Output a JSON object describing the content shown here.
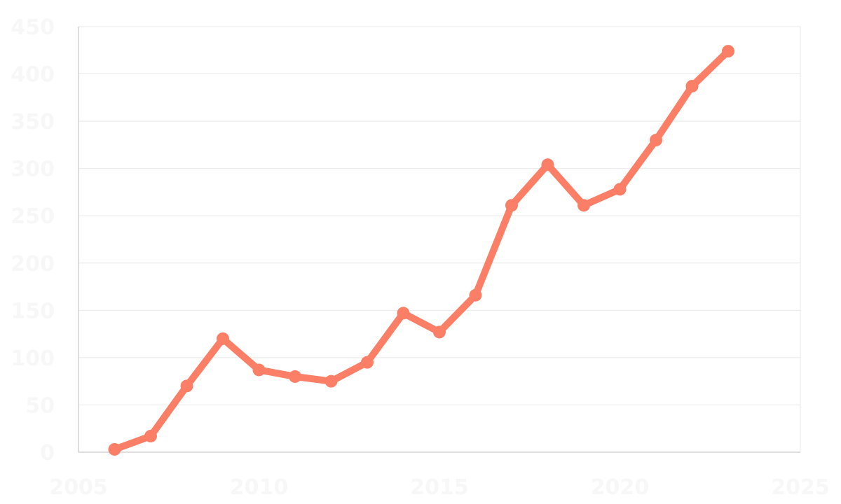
{
  "chart_data": {
    "type": "line",
    "title": "",
    "xlabel": "",
    "ylabel": "",
    "x": [
      2006,
      2007,
      2008,
      2009,
      2010,
      2011,
      2012,
      2013,
      2014,
      2015,
      2016,
      2017,
      2018,
      2019,
      2020,
      2021,
      2022,
      2023
    ],
    "series": [
      {
        "values": [
          3,
          17,
          70,
          120,
          87,
          80,
          75,
          95,
          147,
          127,
          166,
          261,
          304,
          261,
          278,
          330,
          387,
          424
        ]
      }
    ],
    "xlim": [
      2005,
      2025
    ],
    "ylim": [
      0,
      450
    ],
    "x_ticks": [
      "2005",
      "2010",
      "2015",
      "2020",
      "2025"
    ],
    "y_ticks": [
      "0",
      "50",
      "100",
      "150",
      "200",
      "250",
      "300",
      "350",
      "400",
      "450"
    ],
    "grid": true,
    "legend": "none",
    "colors": {
      "line": "#fa7f66",
      "grid": "#e8e8e8",
      "axis": "#d4d4d4",
      "tick_label": "#f7f7f7"
    }
  }
}
